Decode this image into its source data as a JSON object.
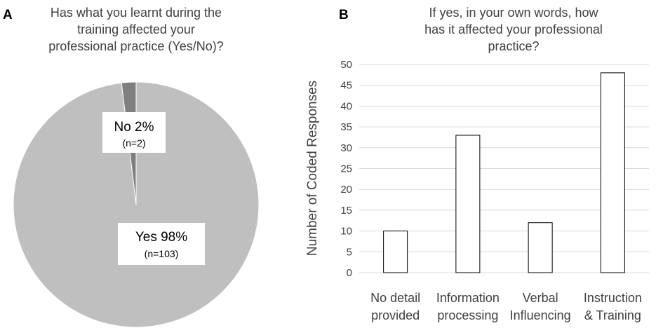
{
  "chart_data": [
    {
      "panel": "A",
      "type": "pie",
      "title_lines": [
        "Has what you learnt during the",
        "training affected your",
        "professional practice (Yes/No)?"
      ],
      "slices": [
        {
          "label": "No 2%",
          "sub": "(n=2)",
          "count": 2,
          "percent": 2,
          "color": "#7f7f7f"
        },
        {
          "label": "Yes 98%",
          "sub": "(n=103)",
          "count": 103,
          "percent": 98,
          "color": "#bfbfbf"
        }
      ]
    },
    {
      "panel": "B",
      "type": "bar",
      "title_lines": [
        "If yes, in your own words, how",
        "has it affected your professional",
        "practice?"
      ],
      "ylabel": "Number of Coded Responses",
      "ylim": [
        0,
        50
      ],
      "yticks": [
        "0",
        "5",
        "10",
        "15",
        "20",
        "25",
        "30",
        "35",
        "40",
        "45",
        "50"
      ],
      "grid": true,
      "categories": [
        [
          "No detail",
          "provided"
        ],
        [
          "Information",
          "processing"
        ],
        [
          "Verbal",
          "Influencing"
        ],
        [
          "Instruction",
          "& Training"
        ]
      ],
      "values": [
        10,
        33,
        12,
        48
      ],
      "bar_fill": "#ffffff",
      "bar_stroke": "#000000",
      "grid_color": "#d9d9d9"
    }
  ]
}
